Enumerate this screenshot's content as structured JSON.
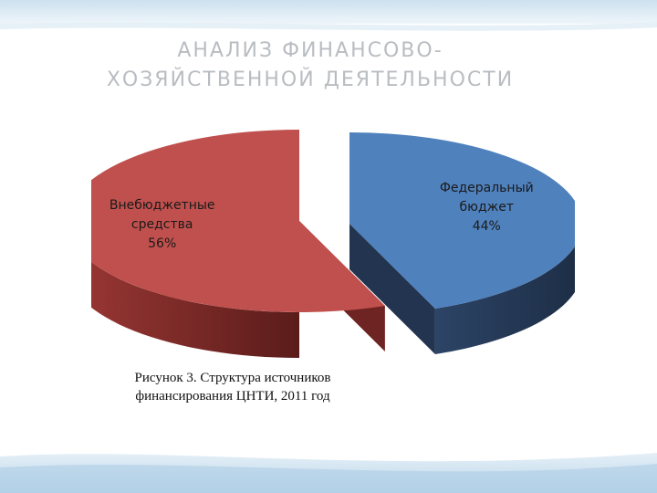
{
  "slide": {
    "title_line1": "АНАЛИЗ ФИНАНСОВО-",
    "title_line2": "ХОЗЯЙСТВЕННОЙ ДЕЯТЕЛЬНОСТИ",
    "caption_line1": "Рисунок 3. Структура источников",
    "caption_line2": "финансирования ЦНТИ, 2011 год"
  },
  "chart_data": {
    "type": "pie",
    "style": "3d-exploded",
    "title": "",
    "slices": [
      {
        "label": "Федеральный бюджет",
        "label_lines": [
          "Федеральный",
          "бюджет"
        ],
        "value": 44,
        "value_text": "44%",
        "color": "#4f81bd",
        "side_color": "#22344f"
      },
      {
        "label": "Внебюджетные средства",
        "label_lines": [
          "Внебюджетные",
          "средства"
        ],
        "value": 56,
        "value_text": "56%",
        "color": "#c0504d",
        "side_color": "#6e2422"
      }
    ]
  }
}
